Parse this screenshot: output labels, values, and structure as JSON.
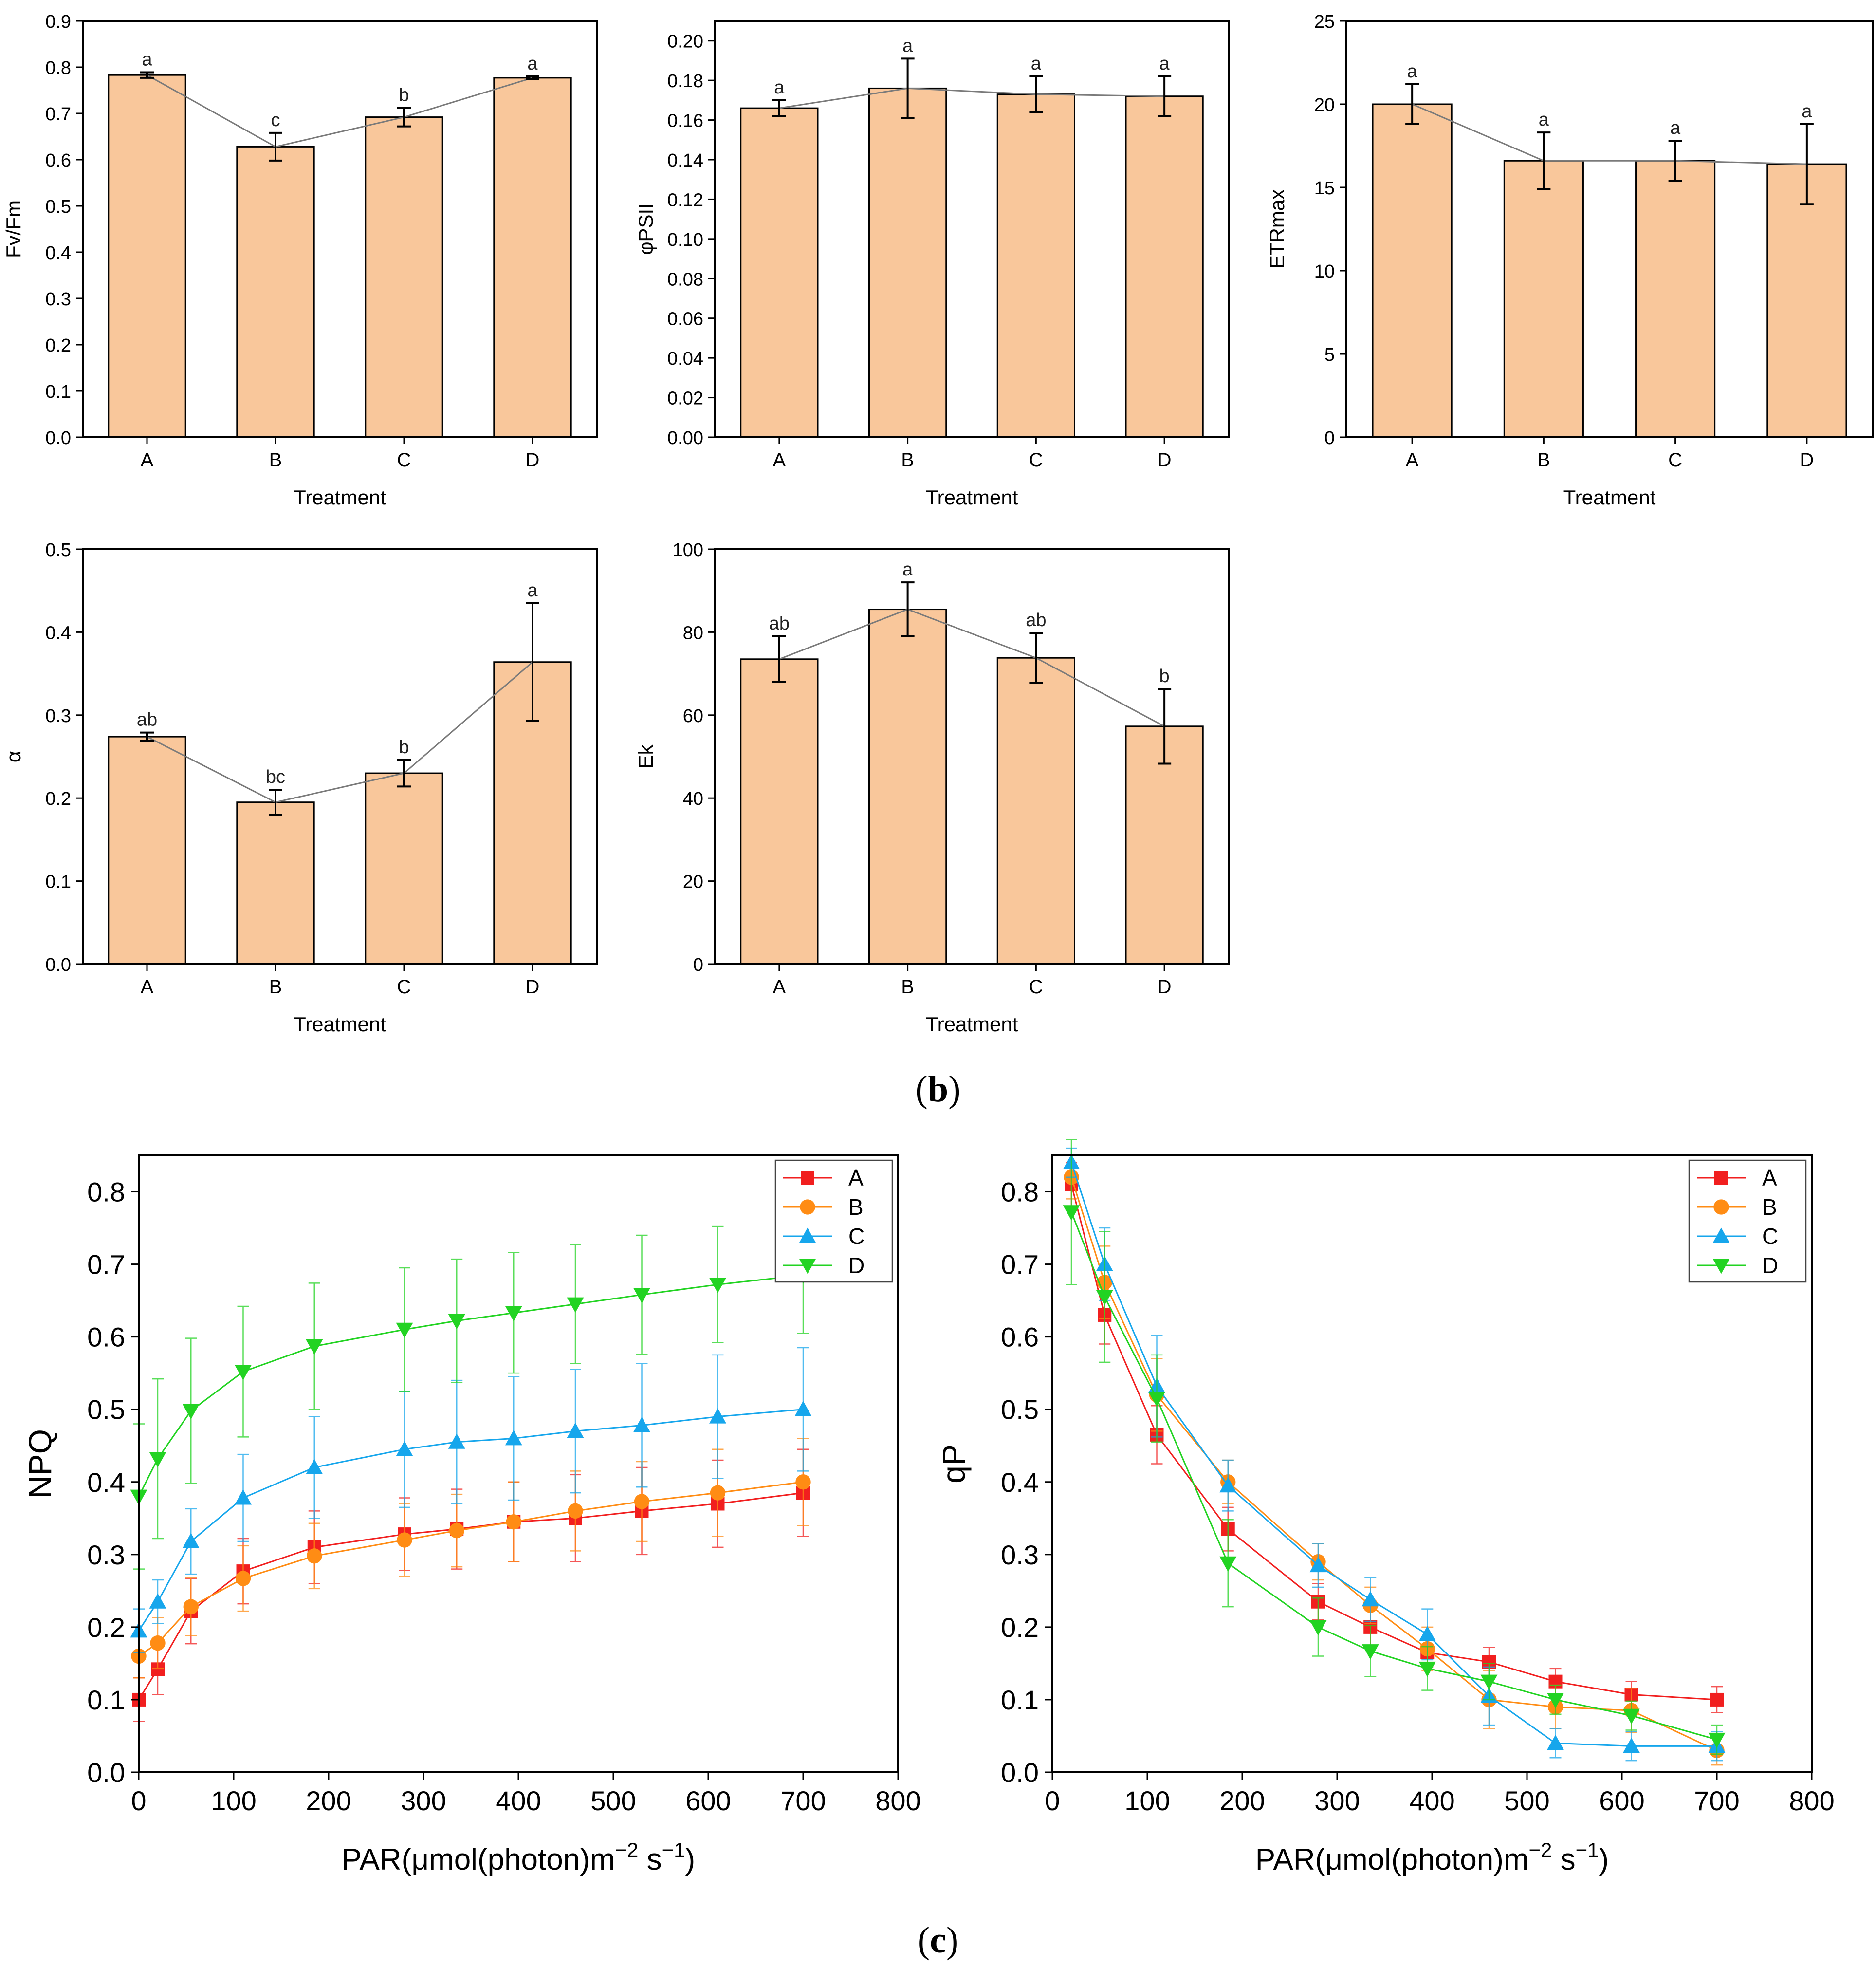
{
  "figure_labels": {
    "b": "(b)",
    "c": "(c)"
  },
  "colors": {
    "bar_fill": "#F9C79B",
    "bar_stroke": "#000000",
    "connector": "#7A7A7A",
    "A": "#F11F1F",
    "B": "#FF8C14",
    "C": "#16A6EC",
    "D": "#22D322"
  },
  "chart_data": [
    {
      "id": "fvfm",
      "type": "bar",
      "title": "",
      "xlabel": "Treatment",
      "ylabel": "Fv/Fm",
      "categories": [
        "A",
        "B",
        "C",
        "D"
      ],
      "values": [
        0.783,
        0.628,
        0.692,
        0.777
      ],
      "errors": [
        0.006,
        0.03,
        0.02,
        0.003
      ],
      "letters": [
        "a",
        "c",
        "b",
        "a"
      ],
      "ylim": [
        0,
        0.9
      ],
      "yticks": [
        0,
        0.1,
        0.2,
        0.3,
        0.4,
        0.5,
        0.6,
        0.7,
        0.8,
        0.9
      ],
      "ytick_labels": [
        "0.0",
        "0.1",
        "0.2",
        "0.3",
        "0.4",
        "0.5",
        "0.6",
        "0.7",
        "0.8",
        "0.9"
      ]
    },
    {
      "id": "phipsii",
      "type": "bar",
      "title": "",
      "xlabel": "Treatment",
      "ylabel": "φPSII",
      "categories": [
        "A",
        "B",
        "C",
        "D"
      ],
      "values": [
        0.166,
        0.176,
        0.173,
        0.172
      ],
      "errors": [
        0.004,
        0.015,
        0.009,
        0.01
      ],
      "letters": [
        "a",
        "a",
        "a",
        "a"
      ],
      "ylim": [
        0,
        0.21
      ],
      "yticks": [
        0,
        0.02,
        0.04,
        0.06,
        0.08,
        0.1,
        0.12,
        0.14,
        0.16,
        0.18,
        0.2
      ],
      "ytick_labels": [
        "0.00",
        "0.02",
        "0.04",
        "0.06",
        "0.08",
        "0.10",
        "0.12",
        "0.14",
        "0.16",
        "0.18",
        "0.20"
      ]
    },
    {
      "id": "etrmax",
      "type": "bar",
      "title": "",
      "xlabel": "Treatment",
      "ylabel": "ETRmax",
      "categories": [
        "A",
        "B",
        "C",
        "D"
      ],
      "values": [
        20.0,
        16.6,
        16.6,
        16.4
      ],
      "errors": [
        1.2,
        1.7,
        1.2,
        2.4
      ],
      "letters": [
        "a",
        "a",
        "a",
        "a"
      ],
      "ylim": [
        0,
        25
      ],
      "yticks": [
        0,
        5,
        10,
        15,
        20,
        25
      ],
      "ytick_labels": [
        "0",
        "5",
        "10",
        "15",
        "20",
        "25"
      ]
    },
    {
      "id": "alpha",
      "type": "bar",
      "title": "",
      "xlabel": "Treatment",
      "ylabel": "α",
      "categories": [
        "A",
        "B",
        "C",
        "D"
      ],
      "values": [
        0.274,
        0.195,
        0.23,
        0.364
      ],
      "errors": [
        0.005,
        0.015,
        0.016,
        0.071
      ],
      "letters": [
        "ab",
        "bc",
        "b",
        "a"
      ],
      "ylim": [
        0,
        0.5
      ],
      "yticks": [
        0,
        0.1,
        0.2,
        0.3,
        0.4,
        0.5
      ],
      "ytick_labels": [
        "0.0",
        "0.1",
        "0.2",
        "0.3",
        "0.4",
        "0.5"
      ]
    },
    {
      "id": "ek",
      "type": "bar",
      "title": "",
      "xlabel": "Treatment",
      "ylabel": "Ek",
      "categories": [
        "A",
        "B",
        "C",
        "D"
      ],
      "values": [
        73.5,
        85.5,
        73.8,
        57.3
      ],
      "errors": [
        5.5,
        6.5,
        6.0,
        9.0
      ],
      "letters": [
        "ab",
        "a",
        "ab",
        "b"
      ],
      "ylim": [
        0,
        100
      ],
      "yticks": [
        0,
        20,
        40,
        60,
        80,
        100
      ],
      "ytick_labels": [
        "0",
        "20",
        "40",
        "60",
        "80",
        "100"
      ]
    },
    {
      "id": "npq",
      "type": "line",
      "title": "",
      "xlabel": "PAR(μmol(photon)m",
      "xlabel_sup1": "−2",
      "xlabel_mid": " s",
      "xlabel_sup2": "−1",
      "xlabel_end": ")",
      "ylabel": "NPQ",
      "xlim": [
        0,
        800
      ],
      "ylim": [
        0,
        0.85
      ],
      "xticks": [
        0,
        100,
        200,
        300,
        400,
        500,
        600,
        700,
        800
      ],
      "xtick_labels": [
        "0",
        "100",
        "200",
        "300",
        "400",
        "500",
        "600",
        "700",
        "800"
      ],
      "yticks": [
        0,
        0.1,
        0.2,
        0.3,
        0.4,
        0.5,
        0.6,
        0.7,
        0.8
      ],
      "ytick_labels": [
        "0.0",
        "0.1",
        "0.2",
        "0.3",
        "0.4",
        "0.5",
        "0.6",
        "0.7",
        "0.8"
      ],
      "legend": "top-right",
      "x": [
        0,
        20,
        55,
        110,
        185,
        280,
        335,
        395,
        460,
        530,
        610,
        700
      ],
      "series": [
        {
          "name": "A",
          "marker": "square",
          "values": [
            0.1,
            0.142,
            0.222,
            0.277,
            0.31,
            0.328,
            0.335,
            0.345,
            0.35,
            0.36,
            0.37,
            0.385
          ],
          "errors": [
            0.03,
            0.035,
            0.045,
            0.045,
            0.05,
            0.05,
            0.055,
            0.055,
            0.06,
            0.06,
            0.06,
            0.06
          ]
        },
        {
          "name": "B",
          "marker": "circle",
          "values": [
            0.16,
            0.178,
            0.228,
            0.267,
            0.298,
            0.32,
            0.333,
            0.345,
            0.36,
            0.373,
            0.385,
            0.4
          ],
          "errors": [
            0.03,
            0.035,
            0.04,
            0.045,
            0.045,
            0.05,
            0.05,
            0.055,
            0.055,
            0.055,
            0.06,
            0.06
          ]
        },
        {
          "name": "C",
          "marker": "triangle-up",
          "values": [
            0.195,
            0.235,
            0.318,
            0.378,
            0.42,
            0.445,
            0.455,
            0.46,
            0.47,
            0.478,
            0.49,
            0.5
          ],
          "errors": [
            0.03,
            0.03,
            0.045,
            0.06,
            0.07,
            0.08,
            0.085,
            0.085,
            0.085,
            0.085,
            0.085,
            0.085
          ]
        },
        {
          "name": "D",
          "marker": "triangle-down",
          "values": [
            0.38,
            0.432,
            0.498,
            0.552,
            0.587,
            0.61,
            0.622,
            0.633,
            0.645,
            0.658,
            0.672,
            0.685
          ],
          "errors": [
            0.1,
            0.11,
            0.1,
            0.09,
            0.087,
            0.085,
            0.085,
            0.083,
            0.082,
            0.082,
            0.08,
            0.08
          ]
        }
      ]
    },
    {
      "id": "qp",
      "type": "line",
      "title": "",
      "xlabel": "PAR(μmol(photon)m",
      "xlabel_sup1": "−2",
      "xlabel_mid": " s",
      "xlabel_sup2": "−1",
      "xlabel_end": ")",
      "ylabel": "qP",
      "xlim": [
        0,
        800
      ],
      "ylim": [
        0,
        0.85
      ],
      "xticks": [
        0,
        100,
        200,
        300,
        400,
        500,
        600,
        700,
        800
      ],
      "xtick_labels": [
        "0",
        "100",
        "200",
        "300",
        "400",
        "500",
        "600",
        "700",
        "800"
      ],
      "yticks": [
        0,
        0.1,
        0.2,
        0.3,
        0.4,
        0.5,
        0.6,
        0.7,
        0.8
      ],
      "ytick_labels": [
        "0.0",
        "0.1",
        "0.2",
        "0.3",
        "0.4",
        "0.5",
        "0.6",
        "0.7",
        "0.8"
      ],
      "legend": "top-right",
      "x": [
        20,
        55,
        110,
        185,
        280,
        335,
        395,
        460,
        530,
        610,
        700
      ],
      "series": [
        {
          "name": "A",
          "marker": "square",
          "values": [
            0.81,
            0.63,
            0.465,
            0.335,
            0.235,
            0.2,
            0.165,
            0.152,
            0.125,
            0.107,
            0.1
          ],
          "errors": [
            0.03,
            0.04,
            0.04,
            0.03,
            0.025,
            0.025,
            0.02,
            0.02,
            0.018,
            0.018,
            0.018
          ]
        },
        {
          "name": "B",
          "marker": "circle",
          "values": [
            0.82,
            0.675,
            0.52,
            0.4,
            0.29,
            0.23,
            0.17,
            0.1,
            0.09,
            0.085,
            0.03
          ],
          "errors": [
            0.03,
            0.05,
            0.05,
            0.03,
            0.025,
            0.025,
            0.03,
            0.04,
            0.03,
            0.03,
            0.02
          ]
        },
        {
          "name": "C",
          "marker": "triangle-up",
          "values": [
            0.84,
            0.7,
            0.532,
            0.395,
            0.285,
            0.238,
            0.19,
            0.105,
            0.04,
            0.036,
            0.036
          ],
          "errors": [
            0.02,
            0.05,
            0.07,
            0.035,
            0.03,
            0.03,
            0.035,
            0.04,
            0.02,
            0.02,
            0.02
          ]
        },
        {
          "name": "D",
          "marker": "triangle-down",
          "values": [
            0.772,
            0.655,
            0.515,
            0.288,
            0.2,
            0.167,
            0.143,
            0.125,
            0.1,
            0.078,
            0.045
          ],
          "errors": [
            0.1,
            0.09,
            0.06,
            0.06,
            0.04,
            0.035,
            0.03,
            0.025,
            0.02,
            0.02,
            0.02
          ]
        }
      ]
    }
  ]
}
